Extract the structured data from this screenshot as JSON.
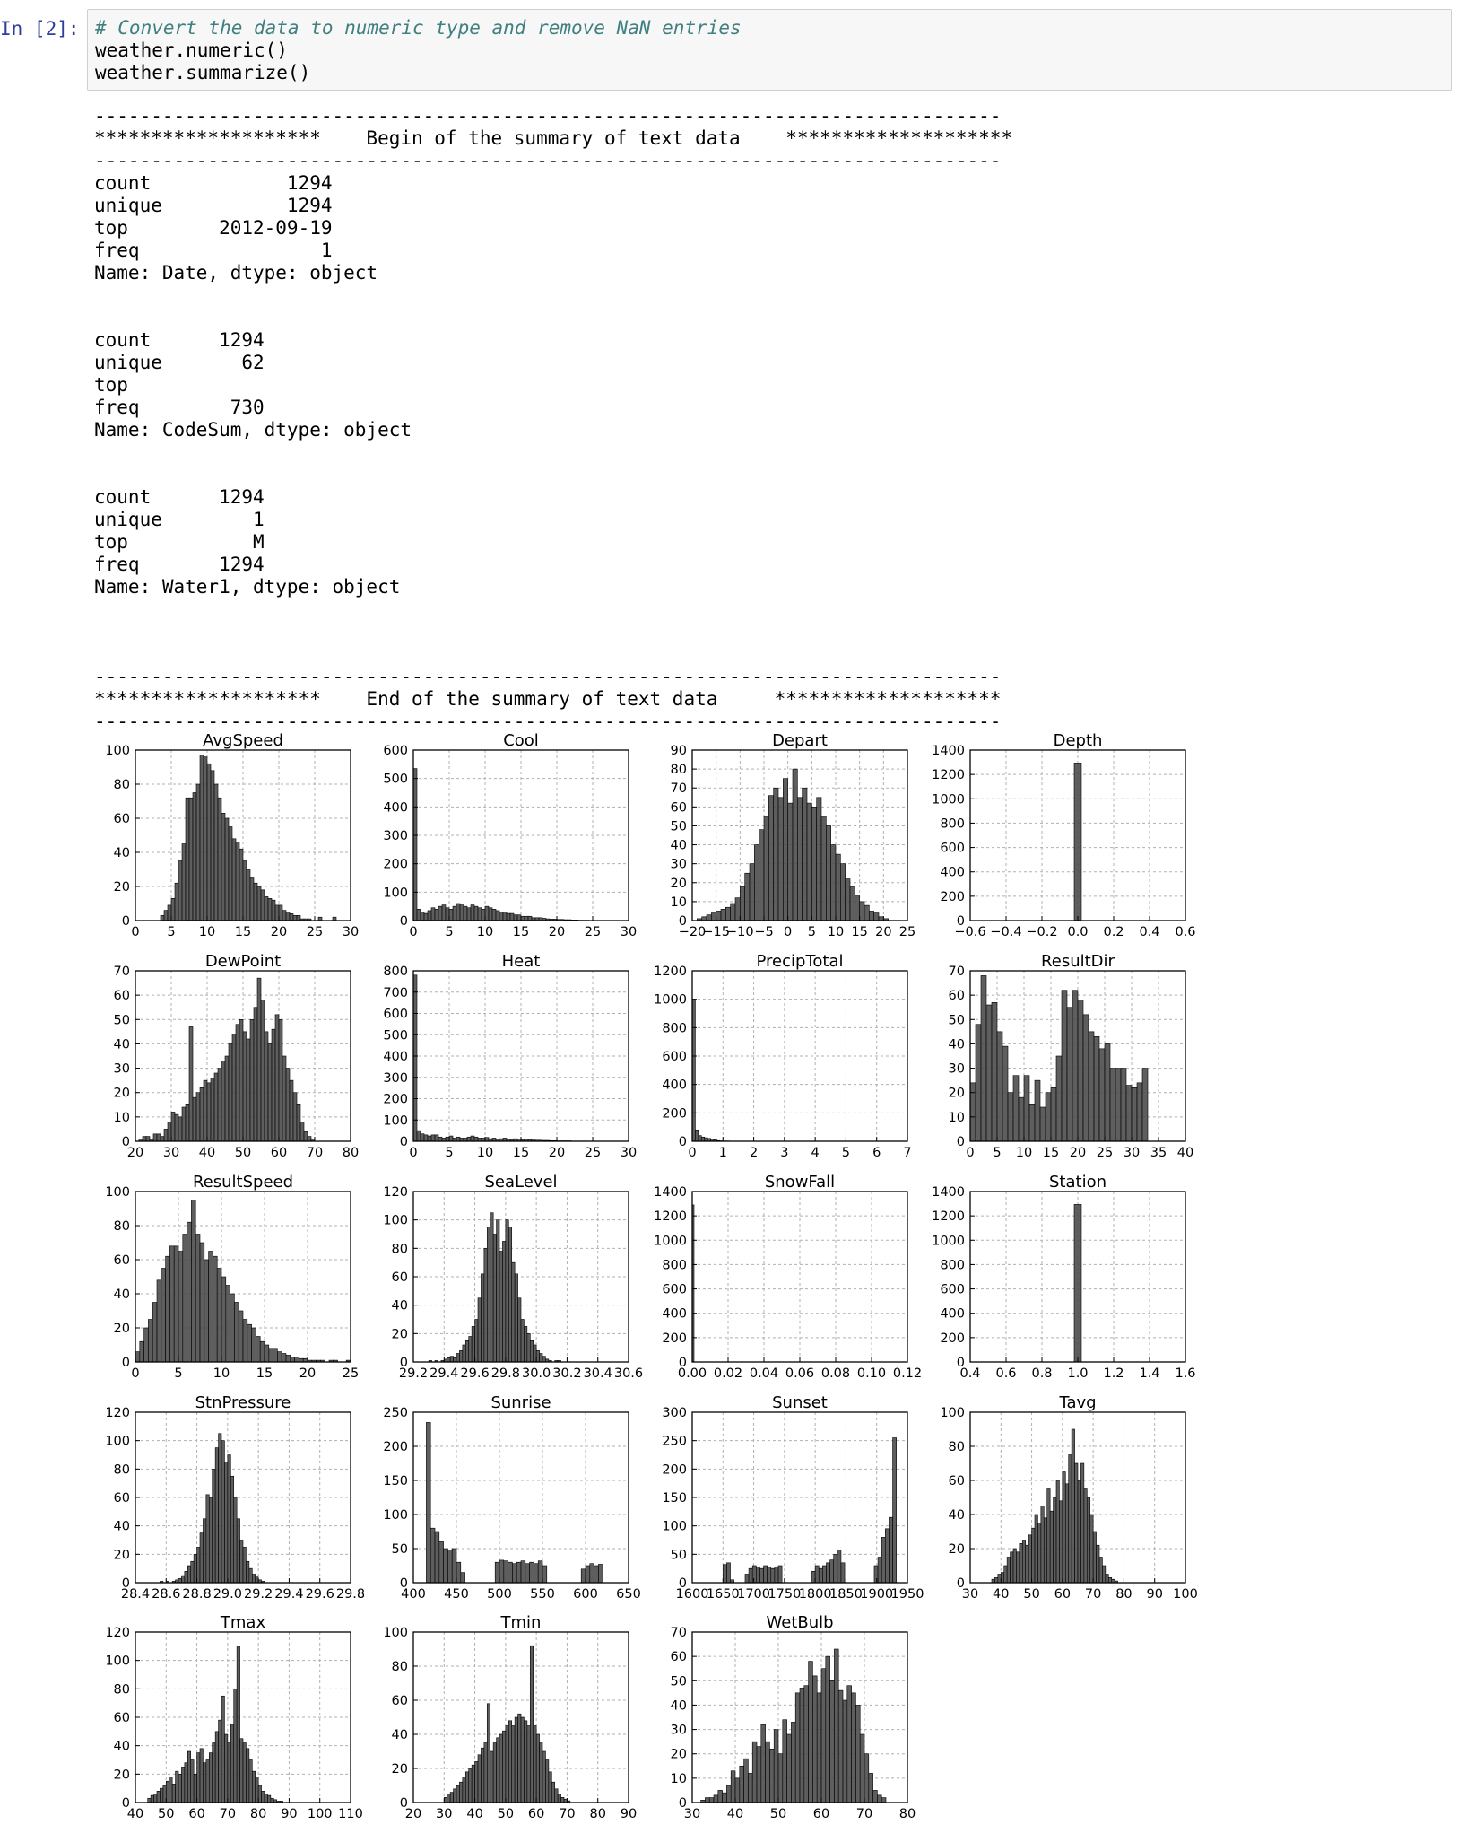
{
  "cell": {
    "prompt": "In [2]:",
    "code": [
      "# Convert the data to numeric type and remove NaN entries",
      "weather.numeric()",
      "weather.summarize()"
    ]
  },
  "output_lines": [
    "--------------------------------------------------------------------------------",
    "********************    Begin of the summary of text data    ********************",
    "--------------------------------------------------------------------------------",
    "count            1294",
    "unique           1294",
    "top        2012-09-19",
    "freq                1",
    "Name: Date, dtype: object",
    "",
    "",
    "count      1294",
    "unique       62",
    "top",
    "freq        730",
    "Name: CodeSum, dtype: object",
    "",
    "",
    "count      1294",
    "unique        1",
    "top           M",
    "freq       1294",
    "Name: Water1, dtype: object",
    "",
    "",
    "",
    "--------------------------------------------------------------------------------",
    "********************    End of the summary of text data     ********************",
    "--------------------------------------------------------------------------------"
  ],
  "colors": {
    "bar_fill": "#4d4d4d",
    "grid": "#b0b0b0",
    "prompt": "#303f9f",
    "comment": "#408080"
  },
  "chart_data": [
    {
      "type": "bar",
      "title": "AvgSpeed",
      "xlim": [
        0,
        30
      ],
      "ylim": [
        0,
        100
      ],
      "xticks": [
        "0",
        "5",
        "10",
        "15",
        "20",
        "25",
        "30"
      ],
      "yticks": [
        "0",
        "20",
        "40",
        "60",
        "80",
        "100"
      ],
      "x_start": 1,
      "bin_width": 0.5,
      "values": [
        0,
        0,
        0,
        0,
        0,
        3,
        6,
        9,
        13,
        22,
        35,
        45,
        72,
        72,
        75,
        80,
        97,
        96,
        92,
        88,
        80,
        72,
        63,
        60,
        55,
        48,
        46,
        42,
        35,
        30,
        25,
        22,
        20,
        18,
        14,
        13,
        12,
        9,
        9,
        6,
        5,
        4,
        3,
        3,
        1,
        1,
        1,
        0,
        0,
        2,
        0,
        0,
        0,
        2,
        0,
        0,
        0,
        0
      ]
    },
    {
      "type": "bar",
      "title": "Cool",
      "xlim": [
        0,
        30
      ],
      "ylim": [
        0,
        600
      ],
      "xticks": [
        "0",
        "5",
        "10",
        "15",
        "20",
        "25",
        "30"
      ],
      "yticks": [
        "0",
        "100",
        "200",
        "300",
        "400",
        "500",
        "600"
      ],
      "x_start": 0,
      "bin_width": 0.5,
      "values": [
        535,
        40,
        30,
        25,
        35,
        45,
        40,
        50,
        55,
        45,
        40,
        50,
        60,
        55,
        50,
        45,
        55,
        50,
        45,
        40,
        50,
        45,
        40,
        35,
        30,
        30,
        25,
        25,
        20,
        20,
        15,
        15,
        15,
        10,
        10,
        10,
        8,
        6,
        5,
        5,
        4,
        4,
        3,
        3,
        2,
        2,
        1,
        1,
        1,
        0,
        0,
        0,
        0,
        0,
        0,
        0,
        0,
        0,
        0,
        0
      ]
    },
    {
      "type": "bar",
      "title": "Depart",
      "xlim": [
        -20,
        25
      ],
      "ylim": [
        0,
        90
      ],
      "xticks": [
        "−20",
        "−15",
        "−10",
        "−5",
        "0",
        "5",
        "10",
        "15",
        "20",
        "25"
      ],
      "yticks": [
        "0",
        "10",
        "20",
        "30",
        "40",
        "50",
        "60",
        "70",
        "80",
        "90"
      ],
      "x_start": -19,
      "bin_width": 1,
      "values": [
        1,
        2,
        3,
        4,
        5,
        6,
        7,
        9,
        12,
        18,
        25,
        30,
        40,
        48,
        55,
        66,
        70,
        65,
        75,
        62,
        80,
        65,
        70,
        62,
        60,
        65,
        55,
        50,
        40,
        35,
        30,
        22,
        18,
        13,
        10,
        8,
        5,
        4,
        2,
        1,
        0,
        0,
        0
      ]
    },
    {
      "type": "bar",
      "title": "Depth",
      "xlim": [
        -0.6,
        0.6
      ],
      "ylim": [
        0,
        1400
      ],
      "xticks": [
        "−0.6",
        "−0.4",
        "−0.2",
        "0.0",
        "0.2",
        "0.4",
        "0.6"
      ],
      "yticks": [
        "0",
        "200",
        "400",
        "600",
        "800",
        "1000",
        "1200",
        "1400"
      ],
      "x_start": -0.02,
      "bin_width": 0.04,
      "values": [
        1294
      ]
    },
    {
      "type": "bar",
      "title": "DewPoint",
      "xlim": [
        20,
        80
      ],
      "ylim": [
        0,
        70
      ],
      "xticks": [
        "20",
        "30",
        "40",
        "50",
        "60",
        "70",
        "80"
      ],
      "yticks": [
        "0",
        "10",
        "20",
        "30",
        "40",
        "50",
        "60",
        "70"
      ],
      "x_start": 21,
      "bin_width": 1,
      "values": [
        1,
        2,
        2,
        1,
        3,
        3,
        2,
        5,
        8,
        12,
        11,
        10,
        14,
        15,
        47,
        18,
        20,
        22,
        25,
        24,
        26,
        28,
        30,
        33,
        35,
        40,
        44,
        48,
        50,
        45,
        42,
        50,
        55,
        67,
        58,
        45,
        40,
        46,
        52,
        50,
        35,
        30,
        25,
        20,
        15,
        8,
        4,
        2,
        1,
        0,
        0,
        0,
        0,
        0,
        0,
        0
      ]
    },
    {
      "type": "bar",
      "title": "Heat",
      "xlim": [
        0,
        30
      ],
      "ylim": [
        0,
        800
      ],
      "xticks": [
        "0",
        "5",
        "10",
        "15",
        "20",
        "25",
        "30"
      ],
      "yticks": [
        "0",
        "100",
        "200",
        "300",
        "400",
        "500",
        "600",
        "700",
        "800"
      ],
      "x_start": 0,
      "bin_width": 0.5,
      "values": [
        780,
        50,
        35,
        30,
        25,
        30,
        30,
        20,
        15,
        20,
        25,
        15,
        20,
        15,
        15,
        20,
        25,
        20,
        15,
        15,
        18,
        12,
        15,
        10,
        12,
        15,
        10,
        8,
        12,
        10,
        8,
        6,
        8,
        6,
        5,
        5,
        4,
        4,
        3,
        3,
        2,
        2,
        2,
        2,
        1,
        1,
        1,
        1,
        1,
        0,
        0,
        0,
        0,
        0,
        0,
        0,
        0,
        0,
        0,
        0
      ]
    },
    {
      "type": "bar",
      "title": "PrecipTotal",
      "xlim": [
        0,
        7
      ],
      "ylim": [
        0,
        1200
      ],
      "xticks": [
        "0",
        "1",
        "2",
        "3",
        "4",
        "5",
        "6",
        "7"
      ],
      "yticks": [
        "0",
        "200",
        "400",
        "600",
        "800",
        "1000",
        "1200"
      ],
      "x_start": 0,
      "bin_width": 0.1,
      "values": [
        1000,
        80,
        40,
        30,
        25,
        20,
        15,
        10,
        5,
        3,
        2,
        2,
        1,
        1
      ]
    },
    {
      "type": "bar",
      "title": "ResultDir",
      "xlim": [
        0,
        40
      ],
      "ylim": [
        0,
        70
      ],
      "xticks": [
        "0",
        "5",
        "10",
        "15",
        "20",
        "25",
        "30",
        "35",
        "40"
      ],
      "yticks": [
        "0",
        "10",
        "20",
        "30",
        "40",
        "50",
        "60",
        "70"
      ],
      "x_start": 0,
      "bin_width": 1,
      "values": [
        24,
        48,
        68,
        56,
        57,
        45,
        39,
        20,
        27,
        18,
        27,
        15,
        25,
        14,
        20,
        22,
        35,
        62,
        55,
        62,
        58,
        52,
        45,
        43,
        38,
        40,
        30,
        30,
        30,
        23,
        22,
        24,
        30
      ]
    },
    {
      "type": "bar",
      "title": "ResultSpeed",
      "xlim": [
        0,
        25
      ],
      "ylim": [
        0,
        100
      ],
      "xticks": [
        "0",
        "5",
        "10",
        "15",
        "20",
        "25"
      ],
      "yticks": [
        "0",
        "20",
        "40",
        "60",
        "80",
        "100"
      ],
      "x_start": 0,
      "bin_width": 0.5,
      "values": [
        6,
        12,
        20,
        25,
        35,
        48,
        55,
        62,
        68,
        68,
        65,
        75,
        82,
        95,
        75,
        70,
        60,
        65,
        62,
        55,
        50,
        45,
        40,
        35,
        30,
        25,
        22,
        20,
        15,
        12,
        10,
        8,
        8,
        6,
        5,
        4,
        3,
        3,
        2,
        2,
        1,
        1,
        1,
        1,
        0,
        1,
        1,
        0,
        0,
        1
      ]
    },
    {
      "type": "bar",
      "title": "SeaLevel",
      "xlim": [
        29.2,
        30.6
      ],
      "ylim": [
        0,
        120
      ],
      "xticks": [
        "29.2",
        "29.4",
        "29.6",
        "29.8",
        "30.0",
        "30.2",
        "30.4",
        "30.6"
      ],
      "yticks": [
        "0",
        "20",
        "40",
        "60",
        "80",
        "100",
        "120"
      ],
      "x_start": 29.3,
      "bin_width": 0.02,
      "values": [
        1,
        0,
        1,
        0,
        1,
        2,
        3,
        4,
        3,
        6,
        8,
        12,
        15,
        18,
        25,
        30,
        45,
        62,
        80,
        95,
        105,
        90,
        100,
        78,
        85,
        100,
        95,
        70,
        62,
        45,
        30,
        25,
        20,
        15,
        12,
        8,
        6,
        4,
        2,
        1,
        0,
        1,
        1
      ]
    },
    {
      "type": "bar",
      "title": "SnowFall",
      "xlim": [
        0,
        0.12
      ],
      "ylim": [
        0,
        1400
      ],
      "xticks": [
        "0.00",
        "0.02",
        "0.04",
        "0.06",
        "0.08",
        "0.10",
        "0.12"
      ],
      "yticks": [
        "0",
        "200",
        "400",
        "600",
        "800",
        "1000",
        "1200",
        "1400"
      ],
      "x_start": 0,
      "bin_width": 0.001,
      "values": [
        1290
      ]
    },
    {
      "type": "bar",
      "title": "Station",
      "xlim": [
        0.4,
        1.6
      ],
      "ylim": [
        0,
        1400
      ],
      "xticks": [
        "0.4",
        "0.6",
        "0.8",
        "1.0",
        "1.2",
        "1.4",
        "1.6"
      ],
      "yticks": [
        "0",
        "200",
        "400",
        "600",
        "800",
        "1000",
        "1200",
        "1400"
      ],
      "x_start": 0.98,
      "bin_width": 0.04,
      "values": [
        1294
      ]
    },
    {
      "type": "bar",
      "title": "StnPressure",
      "xlim": [
        28.4,
        29.8
      ],
      "ylim": [
        0,
        120
      ],
      "xticks": [
        "28.4",
        "28.6",
        "28.8",
        "29.0",
        "29.2",
        "29.4",
        "29.6",
        "29.8"
      ],
      "yticks": [
        "0",
        "20",
        "40",
        "60",
        "80",
        "100",
        "120"
      ],
      "x_start": 28.5,
      "bin_width": 0.02,
      "values": [
        0,
        0,
        0,
        1,
        0,
        1,
        0,
        1,
        2,
        3,
        5,
        8,
        12,
        15,
        20,
        25,
        35,
        45,
        62,
        60,
        80,
        95,
        105,
        100,
        85,
        90,
        75,
        60,
        45,
        30,
        25,
        15,
        10,
        6,
        4,
        2,
        1,
        0
      ]
    },
    {
      "type": "bar",
      "title": "Sunrise",
      "xlim": [
        400,
        650
      ],
      "ylim": [
        0,
        250
      ],
      "xticks": [
        "400",
        "450",
        "500",
        "550",
        "600",
        "650"
      ],
      "yticks": [
        "0",
        "50",
        "100",
        "150",
        "200",
        "250"
      ],
      "x_start": 415,
      "bin_width": 5,
      "values": [
        235,
        80,
        75,
        60,
        50,
        48,
        50,
        30,
        15,
        0,
        0,
        0,
        0,
        0,
        0,
        0,
        30,
        33,
        32,
        30,
        28,
        30,
        32,
        28,
        30,
        28,
        32,
        25,
        0,
        0,
        0,
        0,
        0,
        0,
        0,
        0,
        20,
        25,
        28,
        25,
        27
      ]
    },
    {
      "type": "bar",
      "title": "Sunset",
      "xlim": [
        1600,
        1950
      ],
      "ylim": [
        0,
        300
      ],
      "xticks": [
        "1600",
        "1650",
        "1700",
        "1750",
        "1800",
        "1850",
        "1900",
        "1950"
      ],
      "yticks": [
        "0",
        "50",
        "100",
        "150",
        "200",
        "250",
        "300"
      ],
      "x_start": 1650,
      "bin_width": 6,
      "values": [
        32,
        35,
        5,
        0,
        0,
        0,
        15,
        25,
        30,
        28,
        25,
        30,
        28,
        25,
        28,
        30,
        0,
        0,
        0,
        0,
        0,
        0,
        0,
        0,
        20,
        30,
        25,
        30,
        35,
        40,
        50,
        58,
        35,
        0,
        0,
        0,
        0,
        0,
        0,
        0,
        0,
        30,
        45,
        80,
        95,
        115,
        255
      ]
    },
    {
      "type": "bar",
      "title": "Tavg",
      "xlim": [
        30,
        100
      ],
      "ylim": [
        0,
        100
      ],
      "xticks": [
        "30",
        "40",
        "50",
        "60",
        "70",
        "80",
        "90",
        "100"
      ],
      "yticks": [
        "0",
        "20",
        "40",
        "60",
        "80",
        "100"
      ],
      "x_start": 37,
      "bin_width": 1,
      "values": [
        2,
        3,
        5,
        6,
        10,
        15,
        18,
        20,
        18,
        23,
        25,
        22,
        28,
        32,
        40,
        35,
        45,
        38,
        55,
        42,
        50,
        60,
        48,
        65,
        58,
        75,
        90,
        70,
        60,
        70,
        55,
        50,
        40,
        30,
        22,
        15,
        10,
        5,
        3,
        2,
        1,
        0
      ]
    },
    {
      "type": "bar",
      "title": "Tmax",
      "xlim": [
        40,
        110
      ],
      "ylim": [
        0,
        120
      ],
      "xticks": [
        "40",
        "50",
        "60",
        "70",
        "80",
        "90",
        "100",
        "110"
      ],
      "yticks": [
        "0",
        "20",
        "40",
        "60",
        "80",
        "100",
        "120"
      ],
      "x_start": 44,
      "bin_width": 1,
      "values": [
        3,
        5,
        6,
        8,
        10,
        12,
        15,
        18,
        13,
        22,
        20,
        25,
        28,
        36,
        30,
        20,
        35,
        38,
        28,
        30,
        35,
        42,
        50,
        58,
        75,
        48,
        42,
        55,
        80,
        110,
        45,
        42,
        38,
        30,
        22,
        18,
        12,
        8,
        6,
        5,
        3,
        2,
        1,
        1,
        0,
        0,
        0
      ]
    },
    {
      "type": "bar",
      "title": "Tmin",
      "xlim": [
        20,
        90
      ],
      "ylim": [
        0,
        100
      ],
      "xticks": [
        "20",
        "30",
        "40",
        "50",
        "60",
        "70",
        "80",
        "90"
      ],
      "yticks": [
        "0",
        "20",
        "40",
        "60",
        "80",
        "100"
      ],
      "x_start": 30,
      "bin_width": 1,
      "values": [
        3,
        5,
        6,
        8,
        10,
        12,
        15,
        18,
        20,
        22,
        24,
        28,
        32,
        35,
        58,
        30,
        35,
        38,
        40,
        42,
        45,
        48,
        45,
        50,
        52,
        50,
        48,
        45,
        92,
        45,
        40,
        35,
        30,
        25,
        18,
        12,
        8,
        5,
        3,
        2,
        1
      ]
    },
    {
      "type": "bar",
      "title": "WetBulb",
      "xlim": [
        30,
        80
      ],
      "ylim": [
        0,
        70
      ],
      "xticks": [
        "30",
        "40",
        "50",
        "60",
        "70",
        "80"
      ],
      "yticks": [
        "0",
        "10",
        "20",
        "30",
        "40",
        "50",
        "60",
        "70"
      ],
      "x_start": 32,
      "bin_width": 1,
      "values": [
        1,
        2,
        2,
        3,
        5,
        4,
        7,
        13,
        10,
        15,
        18,
        12,
        25,
        23,
        32,
        25,
        22,
        30,
        20,
        34,
        28,
        33,
        45,
        47,
        48,
        58,
        52,
        45,
        55,
        60,
        50,
        63,
        46,
        42,
        48,
        45,
        40,
        28,
        20,
        12,
        5,
        3,
        2
      ]
    }
  ]
}
